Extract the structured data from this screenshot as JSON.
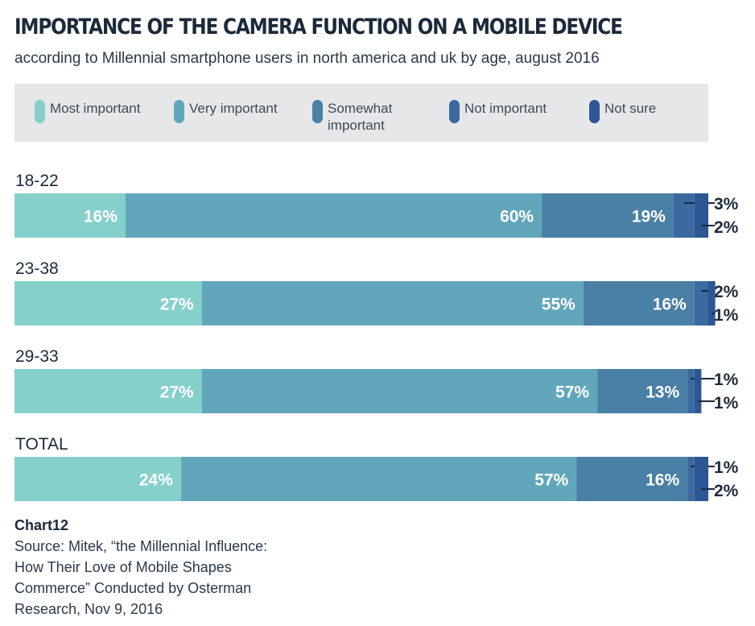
{
  "title": "IMPORTANCE OF THE CAMERA FUNCTION ON A MOBILE DEVICE",
  "subtitle": "according to Millennial smartphone users in north america and uk by age, august 2016",
  "legend": [
    {
      "label": "Most important",
      "color": "#85d0cb"
    },
    {
      "label": "Very important",
      "color": "#62a6bb"
    },
    {
      "label": "Somewhat\nimportant",
      "color": "#4a7fa6"
    },
    {
      "label": "Not important",
      "color": "#3a6aa0"
    },
    {
      "label": "Not sure",
      "color": "#2d5694"
    }
  ],
  "chart_data": {
    "type": "bar",
    "orientation": "horizontal",
    "stacked": true,
    "categories": [
      "18-22",
      "23-38",
      "29-33",
      "TOTAL"
    ],
    "series": [
      {
        "name": "Most important",
        "values": [
          16,
          27,
          27,
          24
        ],
        "color": "#85d0cb"
      },
      {
        "name": "Very important",
        "values": [
          60,
          55,
          57,
          57
        ],
        "color": "#62a6bb"
      },
      {
        "name": "Somewhat important",
        "values": [
          19,
          16,
          13,
          16
        ],
        "color": "#4a7fa6"
      },
      {
        "name": "Not important",
        "values": [
          3,
          2,
          1,
          1
        ],
        "color": "#3a6aa0"
      },
      {
        "name": "Not sure",
        "values": [
          2,
          1,
          1,
          2
        ],
        "color": "#2d5694"
      }
    ],
    "value_suffix": "%",
    "xlim": [
      0,
      100
    ]
  },
  "footer": {
    "chart_label": "Chart12",
    "source_lines": [
      "Source: Mitek, “the Millennial Influence:",
      "How Their Love of Mobile Shapes",
      "Commerce” Conducted by Osterman",
      "Research, Nov 9, 2016"
    ]
  }
}
